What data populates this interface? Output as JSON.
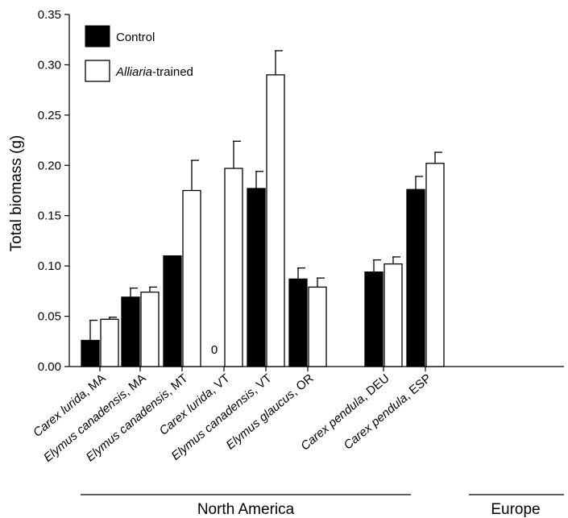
{
  "chart_data": {
    "type": "bar",
    "title": "",
    "xlabel": "",
    "ylabel": "Total biomass (g)",
    "ylim": [
      0,
      0.35
    ],
    "yticks": [
      "0.00",
      "0.05",
      "0.10",
      "0.15",
      "0.20",
      "0.25",
      "0.30",
      "0.35"
    ],
    "grid": false,
    "legend_position": "top-left",
    "categories": [
      {
        "species": "Carex lurida",
        "site": ", MA"
      },
      {
        "species": "Elymus canadensis",
        "site": ", MA"
      },
      {
        "species": "Elymus canadensis",
        "site": ", MT"
      },
      {
        "species": "Carex lurida",
        "site": ", VT"
      },
      {
        "species": "Elymus canadensis",
        "site": ", VT"
      },
      {
        "species": "Elymus glaucus",
        "site": ", OR"
      },
      {
        "species": "Carex pendula",
        "site": ", DEU"
      },
      {
        "species": "Carex pendula",
        "site": ", ESP"
      }
    ],
    "series": [
      {
        "name": "Control",
        "color": "#000000",
        "values": [
          0.026,
          0.069,
          0.11,
          0.0,
          0.177,
          0.087,
          0.094,
          0.176
        ],
        "errors": [
          0.02,
          0.009,
          0.0,
          0.0,
          0.017,
          0.011,
          0.012,
          0.013
        ]
      },
      {
        "name_italic": "Alliaria",
        "name_rest": "-trained",
        "color": "#ffffff",
        "values": [
          0.047,
          0.074,
          0.175,
          0.197,
          0.29,
          0.079,
          0.102,
          0.202
        ],
        "errors": [
          0.002,
          0.005,
          0.03,
          0.027,
          0.024,
          0.009,
          0.007,
          0.011
        ]
      }
    ],
    "annotations": [
      {
        "text": "0",
        "category_index": 3
      }
    ],
    "groups": [
      {
        "label": "North America",
        "first": 0,
        "last": 5
      },
      {
        "label": "Europe",
        "first": 6,
        "last": 7
      }
    ]
  }
}
